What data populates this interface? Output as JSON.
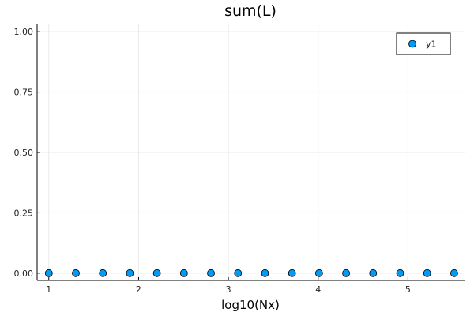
{
  "chart_data": {
    "type": "scatter",
    "title": "sum(L)",
    "xlabel": "log10(Nx)",
    "ylabel": "",
    "xlim": [
      0.87,
      5.63
    ],
    "ylim": [
      -0.03,
      1.03
    ],
    "xticks": [
      1,
      2,
      3,
      4,
      5
    ],
    "xtick_labels": [
      "1",
      "2",
      "3",
      "4",
      "5"
    ],
    "yticks": [
      0.0,
      0.25,
      0.5,
      0.75,
      1.0
    ],
    "ytick_labels": [
      "0.00",
      "0.25",
      "0.50",
      "0.75",
      "1.00"
    ],
    "grid": true,
    "legend_position": "top-right",
    "series": [
      {
        "name": "y1",
        "color": "#009AFA",
        "x": [
          1.0,
          1.301,
          1.602,
          1.903,
          2.204,
          2.505,
          2.806,
          3.107,
          3.408,
          3.709,
          4.01,
          4.311,
          4.612,
          4.913,
          5.214,
          5.515
        ],
        "y": [
          0,
          0,
          0,
          0,
          0,
          0,
          0,
          0,
          0,
          0,
          0,
          0,
          0,
          0,
          0,
          0
        ]
      }
    ]
  }
}
